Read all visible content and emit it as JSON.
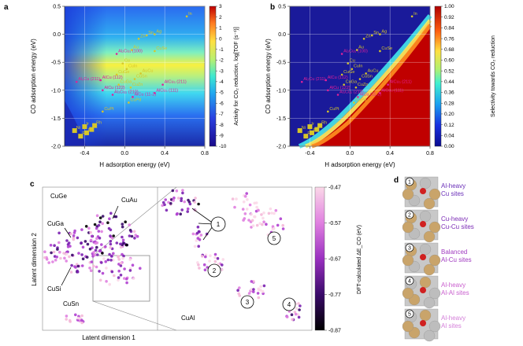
{
  "chart_data": [
    {
      "panel": "a",
      "type": "heatmap",
      "xlabel": "H adsorption energy (eV)",
      "ylabel": "CO adsorption energy (eV)",
      "xlim": [
        -0.6,
        0.8
      ],
      "ylim": [
        -2.0,
        0.5
      ],
      "xticks": [
        "-0.4",
        "0.0",
        "0.4",
        "0.8"
      ],
      "xtick_values": [
        -0.4,
        0.0,
        0.4,
        0.8
      ],
      "yticks": [
        "0.5",
        "0.0",
        "-0.5",
        "-1.0",
        "-1.5",
        "-2.0"
      ],
      "ytick_values": [
        0.5,
        0.0,
        -0.5,
        -1.0,
        -1.5,
        -2.0
      ],
      "colorbar_label": "Activity for CO₂ reduction, log[TOF (s⁻¹)]",
      "colorbar_ticks": [
        "3",
        "2",
        "1",
        "0",
        "-1",
        "-2",
        "-3",
        "-4",
        "-5",
        "-6",
        "-7",
        "-8",
        "-9",
        "-10"
      ],
      "colorbar_range": [
        -10,
        3
      ],
      "points": [
        {
          "label": "In",
          "x": 0.62,
          "y": 0.32,
          "color": "#d6c62a"
        },
        {
          "label": "Zn",
          "x": 0.14,
          "y": -0.08,
          "color": "#d6c62a"
        },
        {
          "label": "Sn",
          "x": 0.22,
          "y": -0.02,
          "color": "#d6c62a"
        },
        {
          "label": "Ag",
          "x": 0.3,
          "y": 0.0,
          "color": "#d6c62a"
        },
        {
          "label": "Au",
          "x": 0.07,
          "y": -0.28,
          "color": "#d6c62a"
        },
        {
          "label": "CuSe",
          "x": 0.3,
          "y": -0.3,
          "color": "#d6c62a"
        },
        {
          "label": "Al₂Cu₃ (100)",
          "x": -0.08,
          "y": -0.35,
          "color": "#e0209a"
        },
        {
          "label": "Cu",
          "x": -0.02,
          "y": -0.52,
          "color": "#d6c62a"
        },
        {
          "label": "AuCu",
          "x": 0.16,
          "y": -0.7,
          "color": "#d6c62a"
        },
        {
          "label": "CuGe",
          "x": -0.08,
          "y": -0.72,
          "color": "#d6c62a"
        },
        {
          "label": "CuIn",
          "x": 0.02,
          "y": -0.62,
          "color": "#d6c62a"
        },
        {
          "label": "CuSn",
          "x": 0.1,
          "y": -0.8,
          "color": "#d6c62a"
        },
        {
          "label": "AlCu (112)",
          "x": -0.24,
          "y": -0.82,
          "color": "#e0209a"
        },
        {
          "label": "Al₂Cu (211)",
          "x": -0.48,
          "y": -0.85,
          "color": "#e0209a"
        },
        {
          "label": "CuGa",
          "x": -0.06,
          "y": -0.9,
          "color": "#d6c62a"
        },
        {
          "label": "CuZn",
          "x": 0.06,
          "y": -0.95,
          "color": "#d6c62a"
        },
        {
          "label": "AlCu₃ (211)",
          "x": 0.38,
          "y": -0.9,
          "color": "#e0209a"
        },
        {
          "label": "AlCu (122)",
          "x": -0.22,
          "y": -1.0,
          "color": "#e0209a"
        },
        {
          "label": "Al₃Cu₂ (210)",
          "x": -0.12,
          "y": -1.08,
          "color": "#e0209a"
        },
        {
          "label": "AlCu₃ (111)",
          "x": 0.3,
          "y": -1.05,
          "color": "#e0209a"
        },
        {
          "label": "AlCu (11-2)",
          "x": 0.08,
          "y": -1.12,
          "color": "#e0209a"
        },
        {
          "label": "CuPd",
          "x": 0.04,
          "y": -1.22,
          "color": "#d6c62a"
        },
        {
          "label": "CuPt",
          "x": -0.22,
          "y": -1.38,
          "color": "#d6c62a"
        },
        {
          "label": "Rh",
          "x": -0.3,
          "y": -1.63,
          "color": "#d6c62a"
        },
        {
          "label": "Pt",
          "x": -0.33,
          "y": -1.7,
          "color": "#d6c62a"
        },
        {
          "label": "Ni",
          "x": -0.5,
          "y": -1.72,
          "color": "#d6c62a"
        },
        {
          "label": "Ir",
          "x": -0.4,
          "y": -1.65,
          "color": "#d6c62a"
        },
        {
          "label": "Pd",
          "x": -0.38,
          "y": -1.76,
          "color": "#d6c62a"
        },
        {
          "label": "Ru",
          "x": -0.44,
          "y": -1.82,
          "color": "#d6c62a"
        }
      ]
    },
    {
      "panel": "b",
      "type": "heatmap",
      "xlabel": "H adsorption energy (eV)",
      "ylabel": "CO adsorption energy (eV)",
      "xlim": [
        -0.6,
        0.8
      ],
      "ylim": [
        -2.0,
        0.5
      ],
      "xticks": [
        "-0.4",
        "0.0",
        "0.4",
        "0.8"
      ],
      "xtick_values": [
        -0.4,
        0.0,
        0.4,
        0.8
      ],
      "yticks": [
        "0.5",
        "0.0",
        "-0.5",
        "-1.0",
        "-1.5",
        "-2.0"
      ],
      "ytick_values": [
        0.5,
        0.0,
        -0.5,
        -1.0,
        -1.5,
        -2.0
      ],
      "colorbar_label": "Selectivity towards CO₂ reduction",
      "colorbar_ticks": [
        "1.00",
        "0.92",
        "0.84",
        "0.76",
        "0.68",
        "0.60",
        "0.52",
        "0.44",
        "0.36",
        "0.28",
        "0.20",
        "0.12",
        "0.04",
        "0.00"
      ],
      "colorbar_range": [
        0.0,
        1.0
      ],
      "points_note": "same labelled catalysts as panel a"
    },
    {
      "panel": "c",
      "type": "scatter",
      "xlabel": "Latent dimension 1",
      "ylabel": "Latent dimension 2",
      "colorbar_label": "DFT-calculated ΔE_CO (eV)",
      "colorbar_ticks": [
        "-0.47",
        "-0.57",
        "-0.67",
        "-0.77",
        "-0.87"
      ],
      "colorbar_range": [
        -0.87,
        -0.47
      ],
      "cluster_labels": [
        "CuGe",
        "CuAu",
        "CuGa",
        "CuSi",
        "CuSn",
        "CuAl"
      ],
      "callouts": [
        "1",
        "2",
        "3",
        "4",
        "5"
      ]
    },
    {
      "panel": "d",
      "type": "table",
      "site_types": [
        {
          "number": "1",
          "label": "Al-heavy Cu sites",
          "line1": "Al-heavy",
          "line2": "Cu sites",
          "color": "#6a2fb8"
        },
        {
          "number": "2",
          "label": "Cu-heavy Cu-Cu sites",
          "line1": "Cu-heavy",
          "line2": "Cu-Cu sites",
          "color": "#7b2bb5"
        },
        {
          "number": "3",
          "label": "Balanced Al-Cu sites",
          "line1": "Balanced",
          "line2": "Al-Cu sites",
          "color": "#a13cc0"
        },
        {
          "number": "4",
          "label": "Al-heavy Al-Al sites",
          "line1": "Al-heavy",
          "line2": "Al-Al sites",
          "color": "#c95fce"
        },
        {
          "number": "5",
          "label": "Al-heavy Al sites",
          "line1": "Al-heavy",
          "line2": "Al sites",
          "color": "#d47fd9"
        }
      ]
    }
  ],
  "panel_letters": [
    "a",
    "b",
    "c",
    "d"
  ]
}
